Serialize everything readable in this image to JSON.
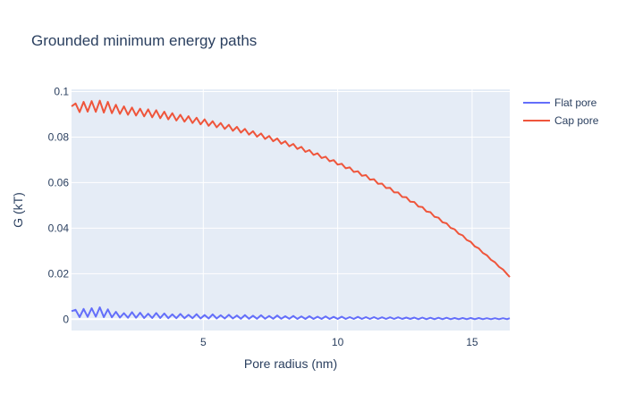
{
  "chart_data": {
    "type": "line",
    "title": "Grounded minimum energy paths",
    "xlabel": "Pore radius (nm)",
    "ylabel": "G (kT)",
    "xlim": [
      0.1,
      16.4
    ],
    "ylim": [
      -0.005,
      0.101
    ],
    "x_ticks": [
      5,
      10,
      15
    ],
    "x_tick_labels": [
      "5",
      "10",
      "15"
    ],
    "y_ticks": [
      0,
      0.02,
      0.04,
      0.06,
      0.08,
      0.1
    ],
    "y_tick_labels": [
      "0",
      "0.02",
      "0.04",
      "0.06",
      "0.08",
      "0.1"
    ],
    "grid": true,
    "legend_position": "top-right",
    "plot_background": "#e5ecf6",
    "series": [
      {
        "name": "Flat pore",
        "color": "#636efa",
        "x": [
          0.1,
          0.25,
          0.4,
          0.55,
          0.7,
          0.85,
          1.0,
          1.15,
          1.3,
          1.45,
          1.6,
          1.75,
          1.9,
          2.05,
          2.2,
          2.35,
          2.5,
          2.65,
          2.8,
          2.95,
          3.1,
          3.25,
          3.4,
          3.55,
          3.7,
          3.85,
          4.0,
          4.15,
          4.3,
          4.45,
          4.6,
          4.75,
          4.9,
          5.05,
          5.2,
          5.35,
          5.5,
          5.65,
          5.8,
          5.95,
          6.1,
          6.25,
          6.4,
          6.55,
          6.7,
          6.85,
          7.0,
          7.15,
          7.3,
          7.45,
          7.6,
          7.75,
          7.9,
          8.05,
          8.2,
          8.35,
          8.5,
          8.65,
          8.8,
          8.95,
          9.1,
          9.25,
          9.4,
          9.55,
          9.7,
          9.85,
          10.0,
          10.15,
          10.3,
          10.45,
          10.6,
          10.75,
          10.9,
          11.05,
          11.2,
          11.35,
          11.5,
          11.65,
          11.8,
          11.95,
          12.1,
          12.25,
          12.4,
          12.55,
          12.7,
          12.85,
          13.0,
          13.15,
          13.3,
          13.45,
          13.6,
          13.75,
          13.9,
          14.05,
          14.2,
          14.35,
          14.5,
          14.65,
          14.8,
          14.95,
          15.1,
          15.25,
          15.4,
          15.55,
          15.7,
          15.85,
          16.0,
          16.15,
          16.3,
          16.4
        ],
        "y": [
          0.0035,
          0.0041,
          0.0009,
          0.0045,
          0.001,
          0.0048,
          0.0011,
          0.0052,
          0.0009,
          0.0043,
          0.0008,
          0.0032,
          0.0007,
          0.0026,
          0.0006,
          0.0031,
          0.0006,
          0.0028,
          0.0005,
          0.0024,
          0.0005,
          0.0027,
          0.0005,
          0.0025,
          0.0004,
          0.0021,
          0.0004,
          0.0023,
          0.0004,
          0.0019,
          0.0004,
          0.0022,
          0.0003,
          0.0018,
          0.0003,
          0.0021,
          0.0003,
          0.0017,
          0.0003,
          0.0019,
          0.0003,
          0.0016,
          0.0002,
          0.0018,
          0.0002,
          0.0015,
          0.0002,
          0.0017,
          0.0002,
          0.0014,
          0.0002,
          0.0016,
          0.0002,
          0.0013,
          0.0002,
          0.0014,
          0.0001,
          0.0012,
          0.0001,
          0.0013,
          0.0001,
          0.0011,
          0.0001,
          0.0012,
          0.0001,
          0.001,
          0.0001,
          0.0011,
          0.0001,
          0.0009,
          0.0001,
          0.001,
          0.0001,
          0.0009,
          0.0001,
          0.0009,
          0.0001,
          0.0008,
          0.0001,
          0.0008,
          0.0001,
          0.0008,
          0.0001,
          0.0007,
          0.0001,
          0.0007,
          0.0,
          0.0007,
          0.0,
          0.0006,
          0.0,
          0.0006,
          0.0,
          0.0006,
          0.0,
          0.0005,
          0.0,
          0.0005,
          0.0,
          0.0005,
          0.0,
          0.0005,
          0.0,
          0.0004,
          0.0,
          0.0004,
          0.0,
          0.0004,
          0.0,
          0.0004
        ]
      },
      {
        "name": "Cap pore",
        "color": "#ef553b",
        "x": [
          0.1,
          0.25,
          0.4,
          0.55,
          0.7,
          0.85,
          1.0,
          1.15,
          1.3,
          1.45,
          1.6,
          1.75,
          1.9,
          2.05,
          2.2,
          2.35,
          2.5,
          2.65,
          2.8,
          2.95,
          3.1,
          3.25,
          3.4,
          3.55,
          3.7,
          3.85,
          4.0,
          4.15,
          4.3,
          4.45,
          4.6,
          4.75,
          4.9,
          5.05,
          5.2,
          5.35,
          5.5,
          5.65,
          5.8,
          5.95,
          6.1,
          6.25,
          6.4,
          6.55,
          6.7,
          6.85,
          7.0,
          7.15,
          7.3,
          7.45,
          7.6,
          7.75,
          7.9,
          8.05,
          8.2,
          8.35,
          8.5,
          8.65,
          8.8,
          8.95,
          9.1,
          9.25,
          9.4,
          9.55,
          9.7,
          9.85,
          10.0,
          10.15,
          10.3,
          10.45,
          10.6,
          10.75,
          10.9,
          11.05,
          11.2,
          11.35,
          11.5,
          11.65,
          11.8,
          11.95,
          12.1,
          12.25,
          12.4,
          12.55,
          12.7,
          12.85,
          13.0,
          13.15,
          13.3,
          13.45,
          13.6,
          13.75,
          13.9,
          14.05,
          14.2,
          14.35,
          14.5,
          14.65,
          14.8,
          14.95,
          15.1,
          15.25,
          15.4,
          15.55,
          15.7,
          15.85,
          16.0,
          16.15,
          16.3,
          16.4
        ],
        "y": [
          0.0935,
          0.0948,
          0.091,
          0.0955,
          0.0912,
          0.0958,
          0.0911,
          0.096,
          0.0908,
          0.0955,
          0.0905,
          0.0942,
          0.0902,
          0.0935,
          0.0898,
          0.093,
          0.0895,
          0.0925,
          0.0891,
          0.0922,
          0.0887,
          0.0918,
          0.0883,
          0.0912,
          0.0878,
          0.0905,
          0.0873,
          0.0898,
          0.0868,
          0.0892,
          0.0862,
          0.0885,
          0.0856,
          0.0878,
          0.085,
          0.087,
          0.0843,
          0.0862,
          0.0836,
          0.0854,
          0.0828,
          0.0845,
          0.082,
          0.0836,
          0.0811,
          0.0826,
          0.0802,
          0.0816,
          0.0792,
          0.0805,
          0.0782,
          0.0794,
          0.0771,
          0.0782,
          0.076,
          0.077,
          0.0748,
          0.0757,
          0.0735,
          0.0743,
          0.0722,
          0.0729,
          0.0708,
          0.0714,
          0.0694,
          0.0699,
          0.0679,
          0.0683,
          0.0663,
          0.0667,
          0.0647,
          0.065,
          0.063,
          0.0633,
          0.0613,
          0.0615,
          0.0595,
          0.0596,
          0.0576,
          0.0577,
          0.0557,
          0.0557,
          0.0537,
          0.0536,
          0.0516,
          0.0515,
          0.0495,
          0.0493,
          0.0473,
          0.047,
          0.045,
          0.0446,
          0.0426,
          0.0421,
          0.0401,
          0.0395,
          0.0375,
          0.0368,
          0.0348,
          0.034,
          0.032,
          0.0311,
          0.0291,
          0.0281,
          0.0261,
          0.025,
          0.023,
          0.0218,
          0.0198,
          0.0185
        ]
      }
    ]
  }
}
